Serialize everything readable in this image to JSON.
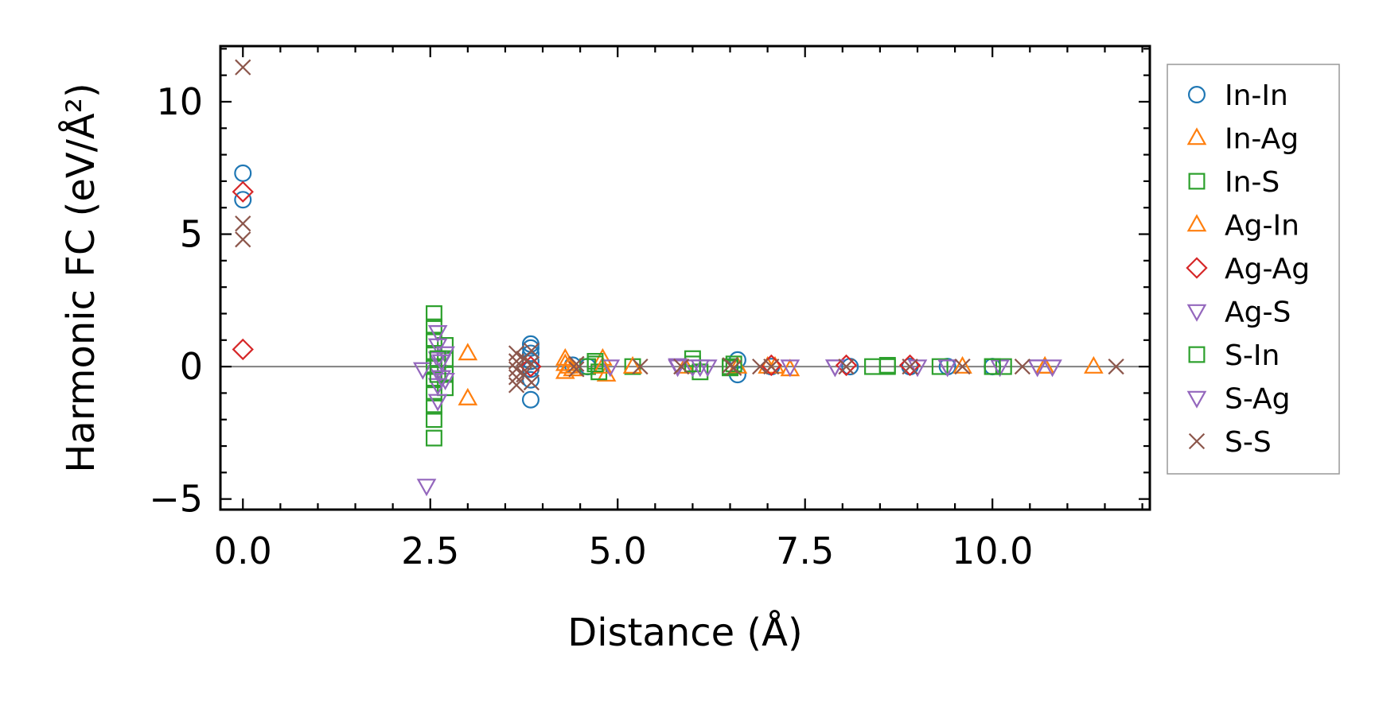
{
  "chart_data": {
    "type": "scatter",
    "title": "",
    "xlabel": "Distance (Å)",
    "ylabel": "Harmonic FC (eV/Å²)",
    "xlim": [
      -0.3,
      12.1
    ],
    "ylim": [
      -5.4,
      12.1
    ],
    "x_ticks": [
      0.0,
      2.5,
      5.0,
      7.5,
      10.0
    ],
    "x_tick_labels": [
      "0.0",
      "2.5",
      "5.0",
      "7.5",
      "10.0"
    ],
    "y_ticks": [
      -5,
      0,
      5,
      10
    ],
    "y_tick_labels": [
      "−5",
      "0",
      "5",
      "10"
    ],
    "reference_line_y": 0,
    "grid": false,
    "legend_position": "outside-right",
    "series": [
      {
        "name": "In-In",
        "marker": "circle",
        "color": "#1f77b4",
        "points": [
          [
            0.0,
            7.3
          ],
          [
            0.0,
            6.3
          ],
          [
            3.84,
            0.85
          ],
          [
            3.84,
            0.7
          ],
          [
            3.84,
            0.5
          ],
          [
            3.84,
            0.2
          ],
          [
            3.84,
            -0.1
          ],
          [
            3.84,
            -0.5
          ],
          [
            3.84,
            -1.25
          ],
          [
            4.4,
            0.05
          ],
          [
            4.6,
            0.0
          ],
          [
            6.6,
            0.25
          ],
          [
            6.6,
            -0.3
          ],
          [
            7.05,
            0.0
          ],
          [
            8.1,
            0.0
          ],
          [
            8.9,
            0.0
          ],
          [
            9.4,
            0.0
          ],
          [
            10.0,
            0.0
          ]
        ]
      },
      {
        "name": "In-Ag",
        "marker": "triangle-up",
        "color": "#ff7f0e",
        "points": [
          [
            3.0,
            0.5
          ],
          [
            3.0,
            -1.2
          ],
          [
            4.3,
            0.3
          ],
          [
            4.3,
            -0.2
          ],
          [
            4.35,
            0.0
          ],
          [
            4.8,
            0.3
          ],
          [
            4.85,
            -0.3
          ],
          [
            5.9,
            0.0
          ],
          [
            6.6,
            0.0
          ],
          [
            7.1,
            0.0
          ],
          [
            7.3,
            -0.1
          ],
          [
            9.6,
            0.0
          ],
          [
            10.7,
            0.0
          ],
          [
            11.35,
            0.0
          ]
        ]
      },
      {
        "name": "In-S",
        "marker": "square",
        "color": "#2ca02c",
        "points": [
          [
            2.55,
            2.0
          ],
          [
            2.55,
            1.5
          ],
          [
            2.55,
            1.0
          ],
          [
            2.55,
            0.5
          ],
          [
            2.55,
            0.0
          ],
          [
            2.55,
            -0.5
          ],
          [
            2.55,
            -1.0
          ],
          [
            2.55,
            -1.5
          ],
          [
            2.55,
            -2.0
          ],
          [
            2.55,
            -2.7
          ],
          [
            2.7,
            0.8
          ],
          [
            2.7,
            0.3
          ],
          [
            2.7,
            -0.3
          ],
          [
            2.7,
            -0.8
          ],
          [
            4.6,
            0.0
          ],
          [
            4.7,
            0.2
          ],
          [
            4.75,
            -0.2
          ],
          [
            5.2,
            0.0
          ],
          [
            6.0,
            0.3
          ],
          [
            6.1,
            -0.2
          ],
          [
            6.5,
            0.0
          ],
          [
            6.55,
            0.1
          ],
          [
            8.4,
            0.0
          ],
          [
            8.6,
            0.05
          ],
          [
            9.3,
            0.0
          ],
          [
            10.0,
            0.0
          ],
          [
            10.15,
            0.0
          ]
        ]
      },
      {
        "name": "Ag-In",
        "marker": "triangle-up",
        "color": "#ff7f0e",
        "points": [
          [
            4.3,
            0.1
          ],
          [
            4.4,
            -0.1
          ],
          [
            4.8,
            0.0
          ],
          [
            5.2,
            0.0
          ],
          [
            7.0,
            0.0
          ],
          [
            10.7,
            0.0
          ]
        ]
      },
      {
        "name": "Ag-Ag",
        "marker": "diamond",
        "color": "#d62728",
        "points": [
          [
            0.0,
            6.6
          ],
          [
            0.0,
            0.65
          ],
          [
            3.84,
            0.0
          ],
          [
            7.05,
            0.05
          ],
          [
            8.05,
            0.05
          ],
          [
            8.9,
            0.05
          ]
        ]
      },
      {
        "name": "Ag-S",
        "marker": "triangle-down",
        "color": "#9467bd",
        "points": [
          [
            2.4,
            -0.1
          ],
          [
            2.45,
            -4.5
          ],
          [
            2.6,
            1.3
          ],
          [
            2.6,
            0.8
          ],
          [
            2.6,
            0.3
          ],
          [
            2.6,
            -0.2
          ],
          [
            2.6,
            -0.7
          ],
          [
            2.6,
            -1.3
          ],
          [
            2.7,
            0.5
          ],
          [
            2.7,
            -0.5
          ],
          [
            4.9,
            0.0
          ],
          [
            5.8,
            0.0
          ],
          [
            6.0,
            0.0
          ],
          [
            6.2,
            0.0
          ],
          [
            7.3,
            0.0
          ],
          [
            7.9,
            0.0
          ],
          [
            9.0,
            0.0
          ],
          [
            9.4,
            0.0
          ],
          [
            10.1,
            0.0
          ],
          [
            10.6,
            0.0
          ],
          [
            10.8,
            0.0
          ]
        ]
      },
      {
        "name": "S-In",
        "marker": "square",
        "color": "#2ca02c",
        "points": [
          [
            2.6,
            -0.3
          ],
          [
            2.6,
            0.3
          ],
          [
            4.7,
            0.1
          ],
          [
            6.0,
            0.1
          ],
          [
            6.5,
            -0.05
          ],
          [
            8.6,
            0.0
          ],
          [
            10.0,
            0.0
          ]
        ]
      },
      {
        "name": "S-Ag",
        "marker": "triangle-down",
        "color": "#9467bd",
        "points": [
          [
            2.65,
            0.2
          ],
          [
            2.65,
            -0.4
          ],
          [
            5.8,
            0.05
          ],
          [
            6.1,
            0.0
          ],
          [
            7.9,
            0.0
          ],
          [
            9.4,
            0.0
          ],
          [
            10.6,
            0.0
          ]
        ]
      },
      {
        "name": "S-S",
        "marker": "x",
        "color": "#8c564b",
        "points": [
          [
            0.0,
            11.3
          ],
          [
            0.0,
            5.4
          ],
          [
            0.0,
            4.8
          ],
          [
            3.65,
            0.5
          ],
          [
            3.65,
            0.2
          ],
          [
            3.65,
            -0.1
          ],
          [
            3.65,
            -0.4
          ],
          [
            3.65,
            -0.7
          ],
          [
            3.75,
            0.3
          ],
          [
            3.75,
            -0.3
          ],
          [
            3.85,
            0.6
          ],
          [
            3.85,
            0.1
          ],
          [
            3.85,
            -0.6
          ],
          [
            4.45,
            0.1
          ],
          [
            4.45,
            -0.1
          ],
          [
            5.3,
            0.0
          ],
          [
            5.85,
            0.0
          ],
          [
            6.5,
            0.05
          ],
          [
            6.55,
            -0.05
          ],
          [
            6.9,
            0.0
          ],
          [
            7.05,
            0.0
          ],
          [
            8.05,
            0.0
          ],
          [
            8.9,
            0.0
          ],
          [
            9.6,
            0.0
          ],
          [
            10.4,
            0.0
          ],
          [
            11.65,
            0.0
          ]
        ]
      }
    ]
  }
}
